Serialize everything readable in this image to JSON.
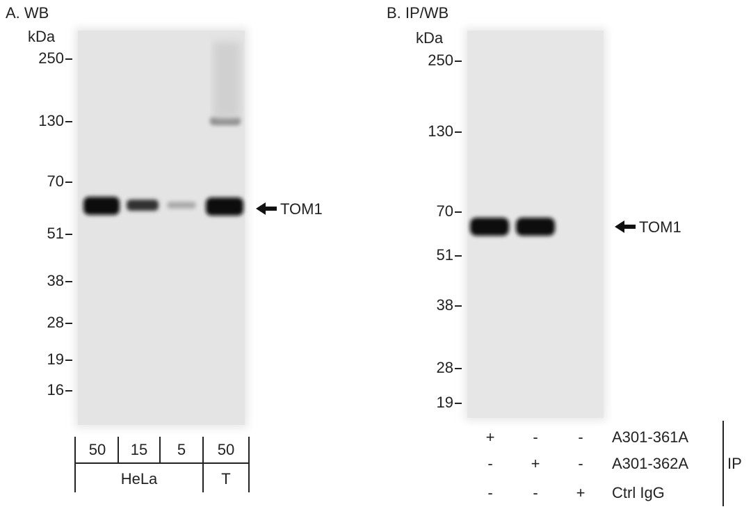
{
  "panel_a": {
    "title": "A. WB",
    "unit": "kDa",
    "markers": [
      "250",
      "130",
      "70",
      "51",
      "38",
      "28",
      "19",
      "16"
    ],
    "lanes": [
      "50",
      "15",
      "5",
      "50"
    ],
    "groups": [
      "HeLa",
      "T"
    ],
    "band_label": "TOM1"
  },
  "panel_b": {
    "title": "B. IP/WB",
    "unit": "kDa",
    "markers": [
      "250",
      "130",
      "70",
      "51",
      "38",
      "28",
      "19"
    ],
    "band_label": "TOM1",
    "rows": [
      {
        "name": "A301-361A",
        "signs": [
          "+",
          "-",
          "-"
        ]
      },
      {
        "name": "A301-362A",
        "signs": [
          "-",
          "+",
          "-"
        ]
      },
      {
        "name": "Ctrl IgG",
        "signs": [
          "-",
          "-",
          "+"
        ]
      }
    ],
    "group_label": "IP"
  }
}
